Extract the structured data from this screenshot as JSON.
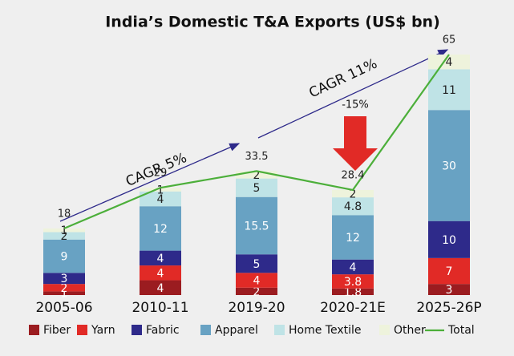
{
  "chart_data": {
    "type": "stacked_bar_line",
    "title": "India’s Domestic T&A Exports (US$ bn)",
    "categories": [
      "2005-06",
      "2010-11",
      "2019-20",
      "2020-21E",
      "2025-26P"
    ],
    "series": [
      {
        "name": "Fiber",
        "color": "#9b1c20",
        "label_color": "#ffffff",
        "values": [
          1,
          4,
          2,
          1.8,
          3
        ]
      },
      {
        "name": "Yarn",
        "color": "#e12a26",
        "label_color": "#ffffff",
        "values": [
          2,
          4,
          4,
          3.8,
          7
        ]
      },
      {
        "name": "Fabric",
        "color": "#2e2a8a",
        "label_color": "#ffffff",
        "values": [
          3,
          4,
          5,
          4,
          10
        ]
      },
      {
        "name": "Apparel",
        "color": "#68a2c3",
        "label_color": "#ffffff",
        "values": [
          9,
          12,
          15.5,
          12,
          30
        ]
      },
      {
        "name": "Home Textile",
        "color": "#bfe3e6",
        "label_color": "#222222",
        "values": [
          2,
          4,
          5,
          4.8,
          11
        ]
      },
      {
        "name": "Other",
        "color": "#eef3dc",
        "label_color": "#222222",
        "values": [
          1,
          1,
          2,
          2,
          4
        ]
      }
    ],
    "line": {
      "name": "Total",
      "color": "#4caf3a",
      "values": [
        18,
        29,
        33.5,
        28.4,
        65
      ]
    },
    "annotations": [
      "CAGR 5%",
      "CAGR 11%",
      "-15%"
    ]
  }
}
